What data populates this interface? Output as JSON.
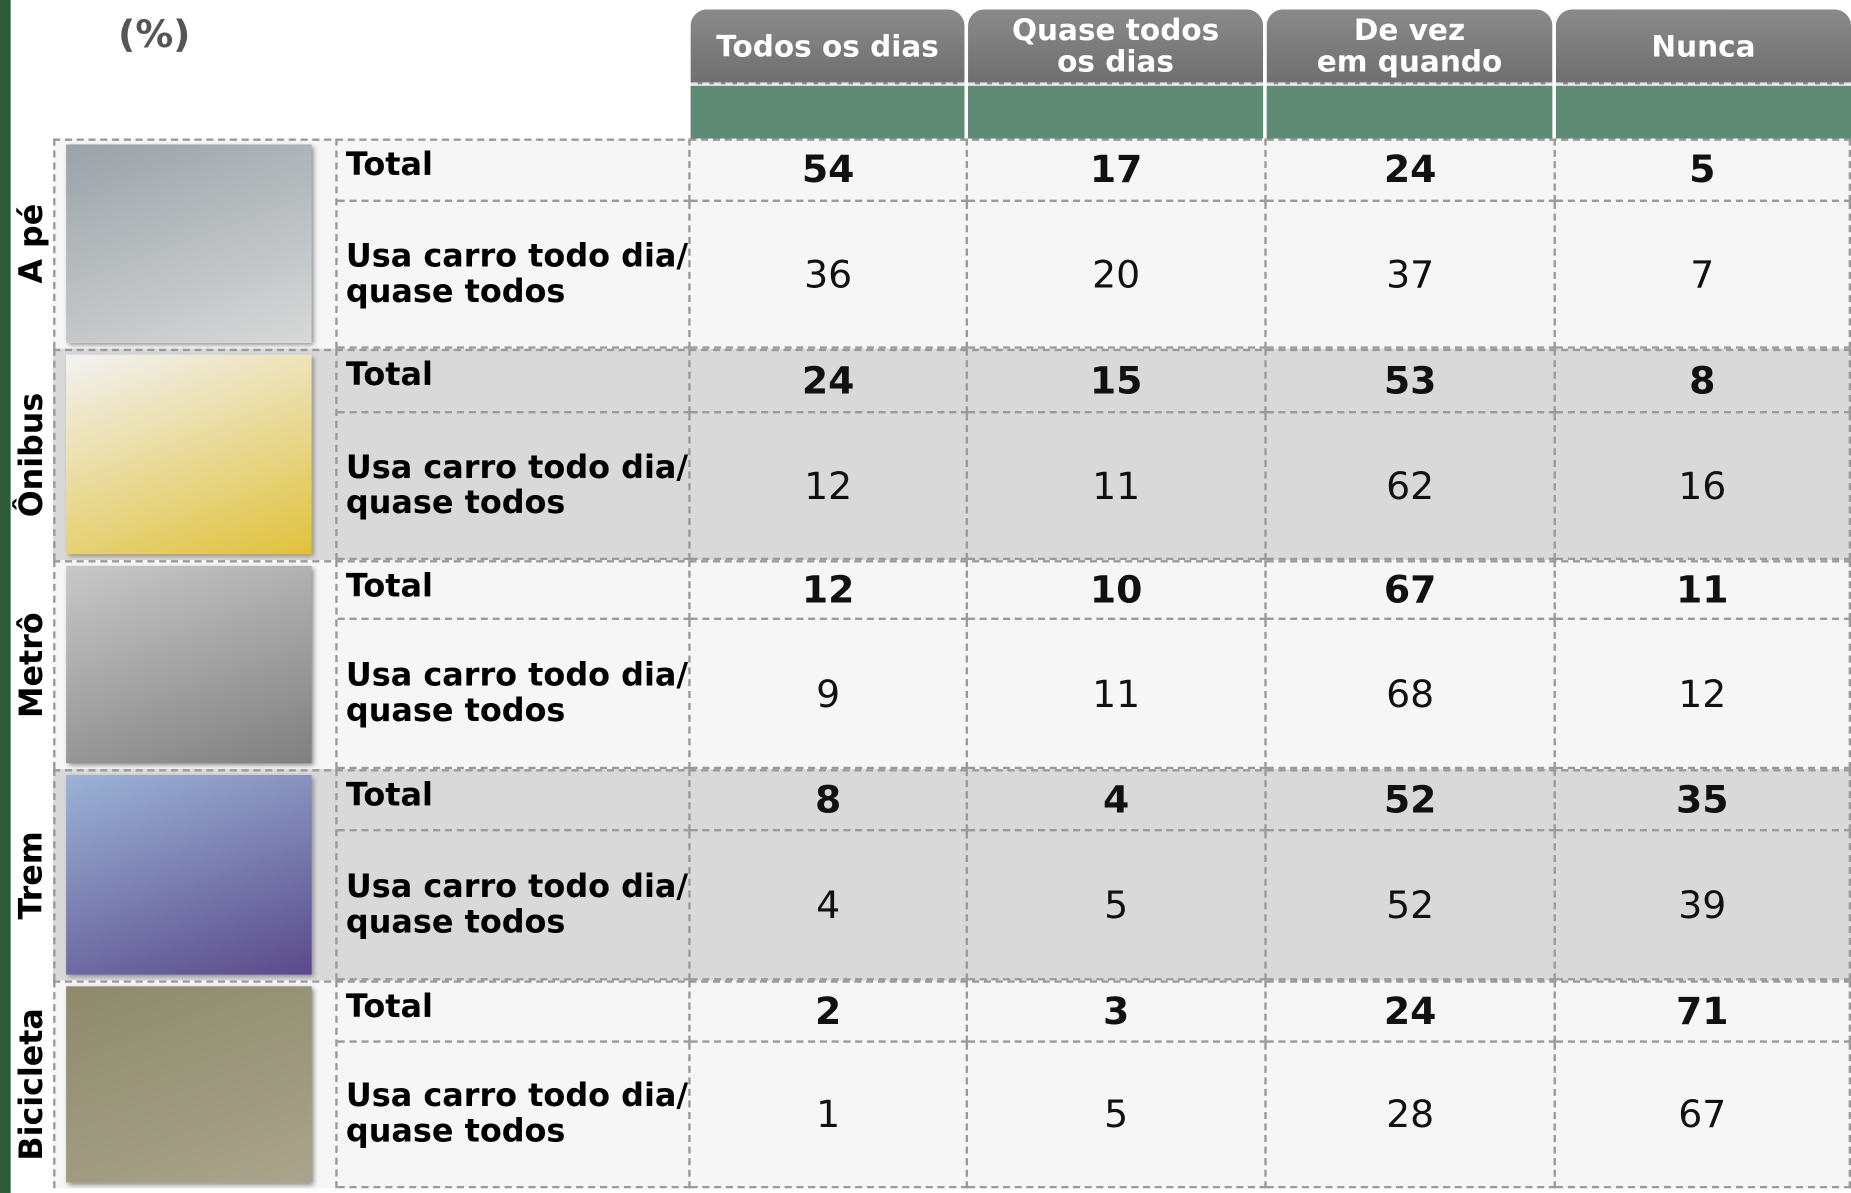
{
  "unit": "(%)",
  "columns": [
    [
      "Todos os dias"
    ],
    [
      "Quase todos",
      "os dias"
    ],
    [
      "De vez",
      "em quando"
    ],
    [
      "Nunca"
    ]
  ],
  "groups": [
    {
      "name": "A pé",
      "rows": [
        {
          "label": "Total",
          "values": [
            54,
            17,
            24,
            5
          ]
        },
        {
          "label": "Usa carro todo dia/ quase todos",
          "values": [
            36,
            20,
            37,
            7
          ]
        }
      ]
    },
    {
      "name": "Ônibus",
      "rows": [
        {
          "label": "Total",
          "values": [
            24,
            15,
            53,
            8
          ]
        },
        {
          "label": "Usa carro todo dia/ quase todos",
          "values": [
            12,
            11,
            62,
            16
          ]
        }
      ]
    },
    {
      "name": "Metrô",
      "rows": [
        {
          "label": "Total",
          "values": [
            12,
            10,
            67,
            11
          ]
        },
        {
          "label": "Usa carro todo dia/ quase todos",
          "values": [
            9,
            11,
            68,
            12
          ]
        }
      ]
    },
    {
      "name": "Trem",
      "rows": [
        {
          "label": "Total",
          "values": [
            8,
            4,
            52,
            35
          ]
        },
        {
          "label": "Usa carro todo dia/ quase todos",
          "values": [
            4,
            5,
            52,
            39
          ]
        }
      ]
    },
    {
      "name": "Bicicleta",
      "rows": [
        {
          "label": "Total",
          "values": [
            2,
            3,
            24,
            71
          ]
        },
        {
          "label": "Usa carro todo dia/ quase todos",
          "values": [
            1,
            5,
            28,
            67
          ]
        }
      ]
    }
  ]
}
